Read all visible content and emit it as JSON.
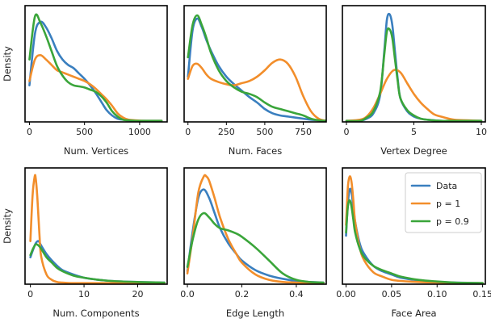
{
  "colors": {
    "data": "#3a7fbf",
    "p1": "#f28e2b",
    "p09": "#3aa53a"
  },
  "legend": {
    "placement": "upper right of last panel",
    "entries": [
      "Data",
      "p = 1",
      "p = 0.9"
    ]
  },
  "chart_data": [
    {
      "type": "line",
      "xlabel": "Num. Vertices",
      "ylabel": "Density",
      "xlim": [
        -40,
        1250
      ],
      "ylim": [
        0,
        1.08
      ],
      "xticks": [
        0,
        500,
        1000
      ],
      "xtick_labels": [
        "0",
        "500",
        "1000"
      ],
      "series": [
        {
          "name": "Data",
          "x": [
            0,
            50,
            100,
            150,
            200,
            250,
            300,
            350,
            400,
            450,
            500,
            550,
            600,
            650,
            700,
            750,
            800,
            850,
            900,
            1000,
            1100,
            1200
          ],
          "y": [
            0.34,
            0.82,
            0.93,
            0.88,
            0.78,
            0.66,
            0.58,
            0.53,
            0.5,
            0.45,
            0.4,
            0.34,
            0.27,
            0.19,
            0.11,
            0.06,
            0.03,
            0.02,
            0.015,
            0.01,
            0.01,
            0.01
          ]
        },
        {
          "name": "p = 1",
          "x": [
            0,
            50,
            100,
            150,
            200,
            250,
            300,
            350,
            400,
            450,
            500,
            550,
            600,
            650,
            700,
            750,
            800,
            850,
            900,
            1000,
            1100,
            1200
          ],
          "y": [
            0.38,
            0.58,
            0.62,
            0.58,
            0.53,
            0.48,
            0.46,
            0.44,
            0.42,
            0.4,
            0.38,
            0.35,
            0.31,
            0.26,
            0.21,
            0.15,
            0.08,
            0.04,
            0.02,
            0.012,
            0.01,
            0.01
          ]
        },
        {
          "name": "p = 0.9",
          "x": [
            0,
            50,
            100,
            150,
            200,
            250,
            300,
            350,
            400,
            450,
            500,
            550,
            600,
            650,
            700,
            750,
            800,
            850,
            900,
            1000,
            1100,
            1200
          ],
          "y": [
            0.58,
            0.98,
            0.92,
            0.8,
            0.66,
            0.52,
            0.43,
            0.37,
            0.34,
            0.33,
            0.32,
            0.3,
            0.28,
            0.24,
            0.18,
            0.1,
            0.05,
            0.02,
            0.015,
            0.01,
            0.01,
            0.01
          ]
        }
      ]
    },
    {
      "type": "line",
      "xlabel": "Num. Faces",
      "ylabel": "",
      "xlim": [
        -25,
        900
      ],
      "ylim": [
        0,
        1.08
      ],
      "xticks": [
        0,
        250,
        500,
        750
      ],
      "xtick_labels": [
        "0",
        "250",
        "500",
        "750"
      ],
      "series": [
        {
          "name": "Data",
          "x": [
            0,
            30,
            60,
            90,
            120,
            150,
            200,
            250,
            300,
            350,
            400,
            450,
            500,
            550,
            600,
            650,
            700,
            750,
            800,
            850,
            900
          ],
          "y": [
            0.42,
            0.85,
            0.96,
            0.88,
            0.76,
            0.66,
            0.52,
            0.42,
            0.35,
            0.29,
            0.23,
            0.18,
            0.12,
            0.08,
            0.06,
            0.05,
            0.04,
            0.03,
            0.02,
            0.015,
            0.01
          ]
        },
        {
          "name": "p = 1",
          "x": [
            0,
            30,
            60,
            90,
            120,
            150,
            200,
            250,
            300,
            350,
            400,
            450,
            500,
            550,
            600,
            650,
            700,
            750,
            800,
            850,
            900
          ],
          "y": [
            0.4,
            0.52,
            0.54,
            0.5,
            0.44,
            0.4,
            0.37,
            0.35,
            0.34,
            0.36,
            0.38,
            0.42,
            0.48,
            0.55,
            0.58,
            0.54,
            0.42,
            0.24,
            0.1,
            0.03,
            0.01
          ]
        },
        {
          "name": "p = 0.9",
          "x": [
            0,
            30,
            60,
            90,
            120,
            150,
            200,
            250,
            300,
            350,
            400,
            450,
            500,
            550,
            600,
            650,
            700,
            750,
            800,
            850,
            900
          ],
          "y": [
            0.6,
            0.9,
            0.99,
            0.9,
            0.78,
            0.64,
            0.48,
            0.38,
            0.32,
            0.28,
            0.26,
            0.23,
            0.18,
            0.14,
            0.12,
            0.1,
            0.08,
            0.06,
            0.03,
            0.015,
            0.01
          ]
        }
      ]
    },
    {
      "type": "line",
      "xlabel": "Vertex Degree",
      "ylabel": "",
      "xlim": [
        -0.3,
        10.3
      ],
      "ylim": [
        0,
        1.08
      ],
      "xticks": [
        0,
        5,
        10
      ],
      "xtick_labels": [
        "0",
        "5",
        "10"
      ],
      "series": [
        {
          "name": "Data",
          "x": [
            0,
            1,
            1.5,
            2,
            2.5,
            2.8,
            3.0,
            3.2,
            3.4,
            3.6,
            3.8,
            4.0,
            4.5,
            5,
            5.5,
            6,
            7,
            8,
            10
          ],
          "y": [
            0.01,
            0.01,
            0.03,
            0.08,
            0.25,
            0.65,
            0.95,
            1.0,
            0.9,
            0.65,
            0.4,
            0.22,
            0.1,
            0.05,
            0.03,
            0.02,
            0.01,
            0.01,
            0.01
          ]
        },
        {
          "name": "p = 1",
          "x": [
            0,
            1,
            1.5,
            2,
            2.5,
            3.0,
            3.5,
            4.0,
            4.5,
            5,
            5.5,
            6,
            6.5,
            7,
            8,
            9,
            10
          ],
          "y": [
            0.01,
            0.02,
            0.05,
            0.13,
            0.26,
            0.4,
            0.48,
            0.46,
            0.36,
            0.26,
            0.18,
            0.12,
            0.07,
            0.05,
            0.02,
            0.015,
            0.01
          ]
        },
        {
          "name": "p = 0.9",
          "x": [
            0,
            1,
            1.5,
            2,
            2.5,
            2.8,
            3.0,
            3.2,
            3.4,
            3.6,
            3.8,
            4.0,
            4.5,
            5,
            5.5,
            6,
            7,
            8,
            10
          ],
          "y": [
            0.01,
            0.01,
            0.04,
            0.1,
            0.28,
            0.62,
            0.84,
            0.86,
            0.78,
            0.58,
            0.38,
            0.22,
            0.11,
            0.06,
            0.03,
            0.02,
            0.01,
            0.01,
            0.01
          ]
        }
      ]
    },
    {
      "type": "line",
      "xlabel": "Num. Components",
      "ylabel": "Density",
      "xlim": [
        -1,
        25.5
      ],
      "ylim": [
        0,
        1.08
      ],
      "xticks": [
        0,
        10,
        20
      ],
      "xtick_labels": [
        "0",
        "10",
        "20"
      ],
      "series": [
        {
          "name": "Data",
          "x": [
            0,
            0.5,
            1,
            1.5,
            2,
            3,
            4,
            5,
            6,
            8,
            10,
            12,
            15,
            20,
            25
          ],
          "y": [
            0.25,
            0.32,
            0.38,
            0.4,
            0.36,
            0.28,
            0.22,
            0.17,
            0.13,
            0.09,
            0.06,
            0.045,
            0.03,
            0.02,
            0.015
          ]
        },
        {
          "name": "p = 1",
          "x": [
            0,
            0.4,
            0.8,
            1.0,
            1.3,
            1.7,
            2,
            3,
            4,
            5,
            6,
            8,
            10,
            15,
            25
          ],
          "y": [
            0.4,
            0.82,
            1.0,
            0.98,
            0.8,
            0.45,
            0.26,
            0.09,
            0.04,
            0.02,
            0.015,
            0.01,
            0.01,
            0.01,
            0.01
          ]
        },
        {
          "name": "p = 0.9",
          "x": [
            0,
            0.5,
            1,
            1.5,
            2,
            3,
            4,
            5,
            6,
            8,
            10,
            12,
            15,
            20,
            25
          ],
          "y": [
            0.27,
            0.33,
            0.37,
            0.36,
            0.33,
            0.25,
            0.2,
            0.15,
            0.12,
            0.08,
            0.06,
            0.045,
            0.03,
            0.02,
            0.015
          ]
        }
      ]
    },
    {
      "type": "line",
      "xlabel": "Edge Length",
      "ylabel": "",
      "xlim": [
        -0.012,
        0.51
      ],
      "ylim": [
        0,
        1.08
      ],
      "xticks": [
        0,
        0.2,
        0.4
      ],
      "xtick_labels": [
        "0.0",
        "0.2",
        "0.4"
      ],
      "series": [
        {
          "name": "Data",
          "x": [
            0,
            0.02,
            0.04,
            0.06,
            0.08,
            0.1,
            0.12,
            0.15,
            0.18,
            0.2,
            0.25,
            0.3,
            0.35,
            0.4,
            0.45,
            0.5
          ],
          "y": [
            0.12,
            0.5,
            0.8,
            0.88,
            0.8,
            0.66,
            0.52,
            0.38,
            0.28,
            0.22,
            0.13,
            0.08,
            0.05,
            0.03,
            0.02,
            0.015
          ]
        },
        {
          "name": "p = 1",
          "x": [
            0,
            0.02,
            0.04,
            0.06,
            0.07,
            0.08,
            0.1,
            0.12,
            0.15,
            0.18,
            0.2,
            0.25,
            0.3,
            0.35,
            0.4,
            0.45,
            0.5
          ],
          "y": [
            0.1,
            0.45,
            0.85,
            1.0,
            1.0,
            0.96,
            0.8,
            0.62,
            0.42,
            0.28,
            0.2,
            0.09,
            0.04,
            0.02,
            0.015,
            0.01,
            0.01
          ]
        },
        {
          "name": "p = 0.9",
          "x": [
            0,
            0.02,
            0.04,
            0.06,
            0.08,
            0.1,
            0.12,
            0.15,
            0.18,
            0.2,
            0.25,
            0.3,
            0.35,
            0.4,
            0.45,
            0.5
          ],
          "y": [
            0.16,
            0.42,
            0.6,
            0.66,
            0.62,
            0.56,
            0.52,
            0.5,
            0.47,
            0.44,
            0.34,
            0.22,
            0.1,
            0.04,
            0.02,
            0.015
          ]
        }
      ]
    },
    {
      "type": "line",
      "xlabel": "Face Area",
      "ylabel": "",
      "xlim": [
        -0.004,
        0.153
      ],
      "ylim": [
        0,
        1.08
      ],
      "xticks": [
        0,
        0.05,
        0.1,
        0.15
      ],
      "xtick_labels": [
        "0.00",
        "0.05",
        "0.10",
        "0.15"
      ],
      "series": [
        {
          "name": "Data",
          "x": [
            0,
            0.002,
            0.004,
            0.006,
            0.008,
            0.01,
            0.015,
            0.02,
            0.03,
            0.04,
            0.05,
            0.06,
            0.08,
            0.1,
            0.12,
            0.15
          ],
          "y": [
            0.45,
            0.75,
            0.88,
            0.85,
            0.72,
            0.58,
            0.38,
            0.28,
            0.17,
            0.12,
            0.09,
            0.06,
            0.035,
            0.02,
            0.015,
            0.01
          ]
        },
        {
          "name": "p = 1",
          "x": [
            0,
            0.002,
            0.004,
            0.006,
            0.008,
            0.01,
            0.015,
            0.02,
            0.03,
            0.04,
            0.05,
            0.06,
            0.08,
            0.1,
            0.12,
            0.15
          ],
          "y": [
            0.55,
            0.9,
            1.0,
            0.95,
            0.78,
            0.58,
            0.34,
            0.22,
            0.11,
            0.07,
            0.04,
            0.03,
            0.02,
            0.015,
            0.01,
            0.01
          ]
        },
        {
          "name": "p = 0.9",
          "x": [
            0,
            0.002,
            0.004,
            0.006,
            0.008,
            0.01,
            0.015,
            0.02,
            0.03,
            0.04,
            0.05,
            0.06,
            0.08,
            0.1,
            0.12,
            0.15
          ],
          "y": [
            0.48,
            0.72,
            0.78,
            0.72,
            0.6,
            0.48,
            0.33,
            0.25,
            0.17,
            0.13,
            0.1,
            0.07,
            0.04,
            0.025,
            0.015,
            0.01
          ]
        }
      ]
    }
  ]
}
